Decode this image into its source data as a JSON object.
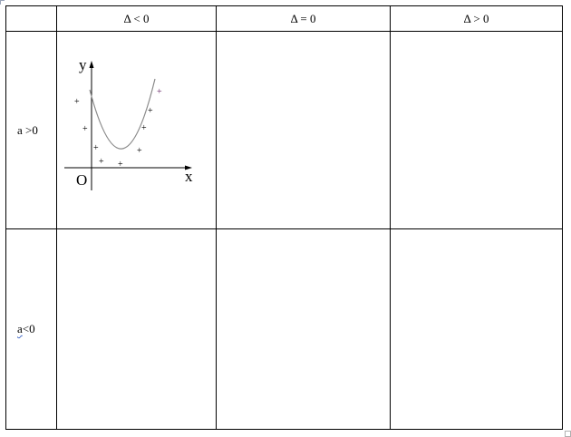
{
  "table": {
    "headers": [
      "",
      "Δ < 0",
      "Δ = 0",
      "Δ > 0"
    ],
    "rows": [
      {
        "label_main": "a",
        "label_rest": " >0"
      },
      {
        "label_main": "a",
        "label_rest": "<0"
      }
    ]
  },
  "graph": {
    "y_label": "y",
    "x_label": "x",
    "origin_label": "O",
    "plus_mark": "+"
  }
}
